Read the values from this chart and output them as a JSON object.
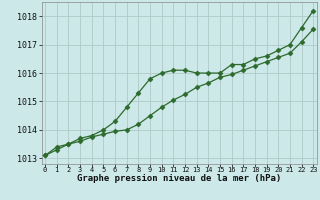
{
  "line1_x": [
    0,
    1,
    2,
    3,
    4,
    5,
    6,
    7,
    8,
    9,
    10,
    11,
    12,
    13,
    14,
    15,
    16,
    17,
    18,
    19,
    20,
    21,
    22,
    23
  ],
  "line1_y": [
    1013.1,
    1013.4,
    1013.5,
    1013.7,
    1013.8,
    1014.0,
    1014.3,
    1014.8,
    1015.3,
    1015.8,
    1016.0,
    1016.1,
    1016.1,
    1016.0,
    1016.0,
    1016.0,
    1016.3,
    1016.3,
    1016.5,
    1016.6,
    1016.8,
    1017.0,
    1017.6,
    1018.2
  ],
  "line2_x": [
    0,
    1,
    2,
    3,
    4,
    5,
    6,
    7,
    8,
    9,
    10,
    11,
    12,
    13,
    14,
    15,
    16,
    17,
    18,
    19,
    20,
    21,
    22,
    23
  ],
  "line2_y": [
    1013.1,
    1013.3,
    1013.5,
    1013.6,
    1013.75,
    1013.85,
    1013.95,
    1014.0,
    1014.2,
    1014.5,
    1014.8,
    1015.05,
    1015.25,
    1015.5,
    1015.65,
    1015.85,
    1015.95,
    1016.1,
    1016.25,
    1016.4,
    1016.55,
    1016.7,
    1017.1,
    1017.55
  ],
  "line_color": "#2d6a2d",
  "bg_color": "#cce8e8",
  "grid_color": "#b0c8c8",
  "xlabel": "Graphe pression niveau de la mer (hPa)",
  "ylim": [
    1012.8,
    1018.5
  ],
  "xlim": [
    -0.3,
    23.3
  ],
  "yticks": [
    1013,
    1014,
    1015,
    1016,
    1017,
    1018
  ],
  "xticks": [
    0,
    1,
    2,
    3,
    4,
    5,
    6,
    7,
    8,
    9,
    10,
    11,
    12,
    13,
    14,
    15,
    16,
    17,
    18,
    19,
    20,
    21,
    22,
    23
  ],
  "xtick_labels": [
    "0",
    "1",
    "2",
    "3",
    "4",
    "5",
    "6",
    "7",
    "8",
    "9",
    "10",
    "11",
    "12",
    "13",
    "14",
    "15",
    "16",
    "17",
    "18",
    "19",
    "20",
    "21",
    "22",
    "23"
  ]
}
